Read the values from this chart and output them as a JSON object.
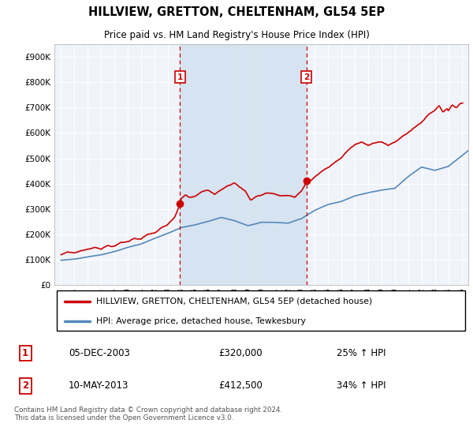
{
  "title": "HILLVIEW, GRETTON, CHELTENHAM, GL54 5EP",
  "subtitle": "Price paid vs. HM Land Registry's House Price Index (HPI)",
  "legend_line1": "HILLVIEW, GRETTON, CHELTENHAM, GL54 5EP (detached house)",
  "legend_line2": "HPI: Average price, detached house, Tewkesbury",
  "sale1_date": "05-DEC-2003",
  "sale1_price": "£320,000",
  "sale1_hpi": "25% ↑ HPI",
  "sale2_date": "10-MAY-2013",
  "sale2_price": "£412,500",
  "sale2_hpi": "34% ↑ HPI",
  "footer": "Contains HM Land Registry data © Crown copyright and database right 2024.\nThis data is licensed under the Open Government Licence v3.0.",
  "sale1_x": 2003.917,
  "sale1_y": 320000,
  "sale2_x": 2013.37,
  "sale2_y": 412500,
  "red_color": "#cc0000",
  "blue_color": "#5588bb",
  "blue_fill": "#dce9f5",
  "vline_color": "#cc0000",
  "bg_color": "#f0f0f0",
  "chart_bg": "#f5f8ff",
  "grid_color": "#ffffff",
  "shade_color": "#d0e4f5",
  "ylim": [
    0,
    950000
  ],
  "xlim_start": 1994.5,
  "xlim_end": 2025.5,
  "yticks": [
    0,
    100000,
    200000,
    300000,
    400000,
    500000,
    600000,
    700000,
    800000,
    900000
  ],
  "ytick_labels": [
    "£0",
    "£100K",
    "£200K",
    "£300K",
    "£400K",
    "£500K",
    "£600K",
    "£700K",
    "£800K",
    "£900K"
  ],
  "xticks": [
    1995,
    1996,
    1997,
    1998,
    1999,
    2000,
    2001,
    2002,
    2003,
    2004,
    2005,
    2006,
    2007,
    2008,
    2009,
    2010,
    2011,
    2012,
    2013,
    2014,
    2015,
    2016,
    2017,
    2018,
    2019,
    2020,
    2021,
    2022,
    2023,
    2024,
    2025
  ]
}
